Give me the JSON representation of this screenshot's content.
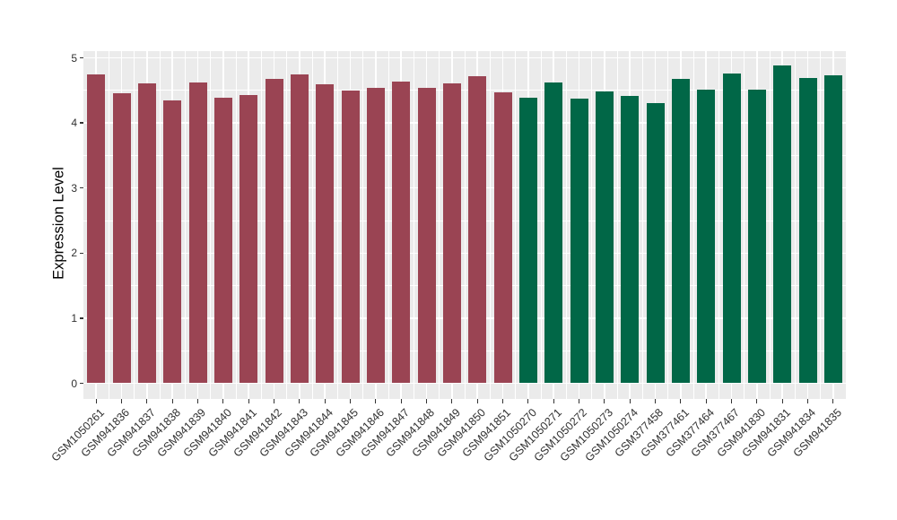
{
  "figure": {
    "title": "",
    "background_color": "#FFFFFF"
  },
  "chart_data": {
    "type": "bar",
    "title": "",
    "xlabel": "",
    "ylabel": "Expression Level",
    "ylim": [
      0,
      5
    ],
    "yticks": [
      0,
      1,
      2,
      3,
      4,
      5
    ],
    "grid": "white major and minor gridlines on gray panel (ggplot theme_gray), minor at 0.5 steps",
    "legend_position": "none",
    "panel_color": "#EBEBEB",
    "gridline_color": "#FFFFFF",
    "tick_text_color": "#303030",
    "group_colors": {
      "group1": "#9A4453",
      "group2": "#016747"
    },
    "categories": [
      "GSM1050261",
      "GSM941836",
      "GSM941837",
      "GSM941838",
      "GSM941839",
      "GSM941840",
      "GSM941841",
      "GSM941842",
      "GSM941843",
      "GSM941844",
      "GSM941845",
      "GSM941846",
      "GSM941847",
      "GSM941848",
      "GSM941849",
      "GSM941850",
      "GSM941851",
      "GSM1050270",
      "GSM1050271",
      "GSM1050272",
      "GSM1050273",
      "GSM1050274",
      "GSM377458",
      "GSM377461",
      "GSM377464",
      "GSM377467",
      "GSM941830",
      "GSM941831",
      "GSM941834",
      "GSM941835"
    ],
    "values": [
      4.74,
      4.46,
      4.61,
      4.35,
      4.62,
      4.39,
      4.43,
      4.67,
      4.74,
      4.6,
      4.5,
      4.54,
      4.63,
      4.54,
      4.61,
      4.72,
      4.47,
      4.39,
      4.62,
      4.38,
      4.49,
      4.41,
      4.31,
      4.68,
      4.51,
      4.76,
      4.51,
      4.88,
      4.69,
      4.73
    ],
    "bar_groups": [
      "group1",
      "group1",
      "group1",
      "group1",
      "group1",
      "group1",
      "group1",
      "group1",
      "group1",
      "group1",
      "group1",
      "group1",
      "group1",
      "group1",
      "group1",
      "group1",
      "group1",
      "group2",
      "group2",
      "group2",
      "group2",
      "group2",
      "group2",
      "group2",
      "group2",
      "group2",
      "group2",
      "group2",
      "group2",
      "group2"
    ]
  }
}
